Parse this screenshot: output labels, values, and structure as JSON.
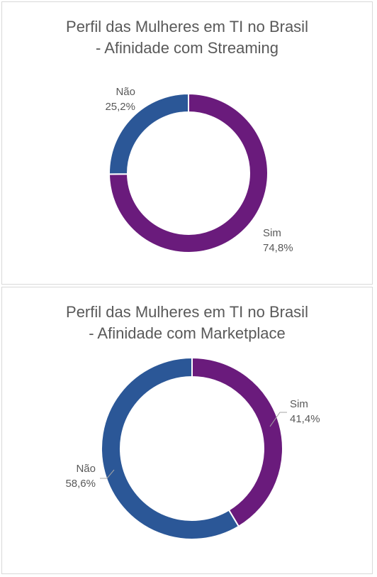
{
  "colors": {
    "sim": "#6a1b7c",
    "nao": "#2b5797",
    "text": "#595959",
    "leader": "#a6a6a6"
  },
  "chart_data": [
    {
      "type": "pie",
      "title_lines": [
        "Perfil das Mulheres em TI no Brasil",
        "- Afinidade com Streaming"
      ],
      "categories": [
        "Sim",
        "Não"
      ],
      "values": [
        74.8,
        25.2
      ],
      "value_labels": [
        "74,8%",
        "25,2%"
      ],
      "legend": "none"
    },
    {
      "type": "pie",
      "title_lines": [
        "Perfil das Mulheres em TI no Brasil",
        "- Afinidade com Marketplace"
      ],
      "categories": [
        "Sim",
        "Não"
      ],
      "values": [
        41.4,
        58.6
      ],
      "value_labels": [
        "41,4%",
        "58,6%"
      ],
      "legend": "none"
    }
  ]
}
